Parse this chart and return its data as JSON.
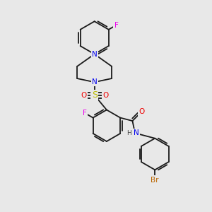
{
  "bg_color": "#e8e8e8",
  "bond_color": "#1a1a1a",
  "bond_lw": 1.3,
  "atom_colors": {
    "N": "#0000ee",
    "O": "#ee0000",
    "S": "#bbbb00",
    "F": "#ee00ee",
    "Br": "#bb6600",
    "H": "#444444",
    "C": "#1a1a1a"
  },
  "font_size": 7.5,
  "fig_width": 3.0,
  "fig_height": 3.0,
  "dpi": 100
}
